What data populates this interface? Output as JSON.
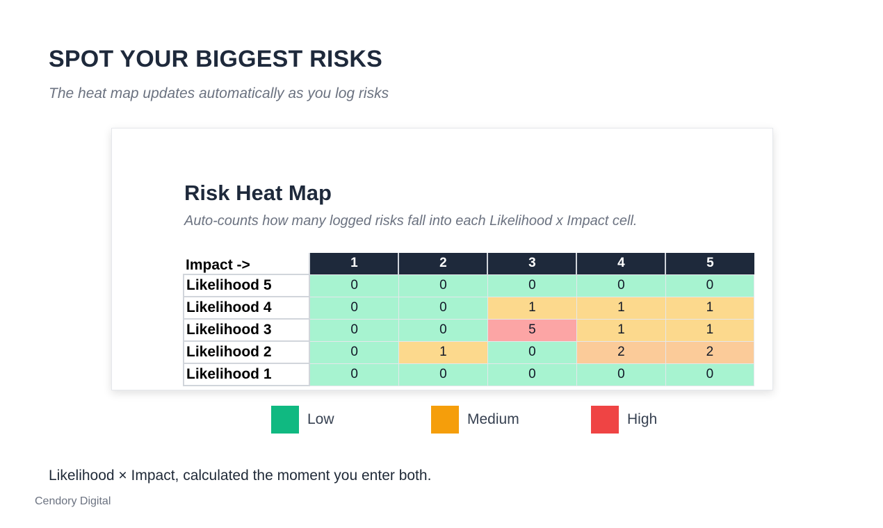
{
  "page": {
    "title": "SPOT YOUR BIGGEST RISKS",
    "subtitle": "The heat map updates automatically as you log risks",
    "footnote": "Likelihood × Impact, calculated the moment you enter both.",
    "brand": "Cendory Digital"
  },
  "legend": [
    {
      "label": "Low",
      "color": "#10b981"
    },
    {
      "label": "Medium",
      "color": "#f59e0b"
    },
    {
      "label": "High",
      "color": "#ef4444"
    }
  ],
  "chart_data": {
    "type": "heatmap",
    "title": "Risk Heat Map",
    "subtitle": "Auto-counts how many logged risks fall into each Likelihood x Impact cell.",
    "corner_label": "Impact ->",
    "x": [
      "1",
      "2",
      "3",
      "4",
      "5"
    ],
    "y": [
      "Likelihood 5",
      "Likelihood 4",
      "Likelihood 3",
      "Likelihood 2",
      "Likelihood 1"
    ],
    "values": [
      [
        0,
        0,
        0,
        0,
        0
      ],
      [
        0,
        0,
        1,
        1,
        1
      ],
      [
        0,
        0,
        5,
        1,
        1
      ],
      [
        0,
        1,
        0,
        2,
        2
      ],
      [
        0,
        0,
        0,
        0,
        0
      ]
    ],
    "cell_colors": {
      "low": "#a7f3d0",
      "medium": "#fcd98d",
      "medium_high": "#fbcb99",
      "high": "#fca5a5"
    }
  }
}
